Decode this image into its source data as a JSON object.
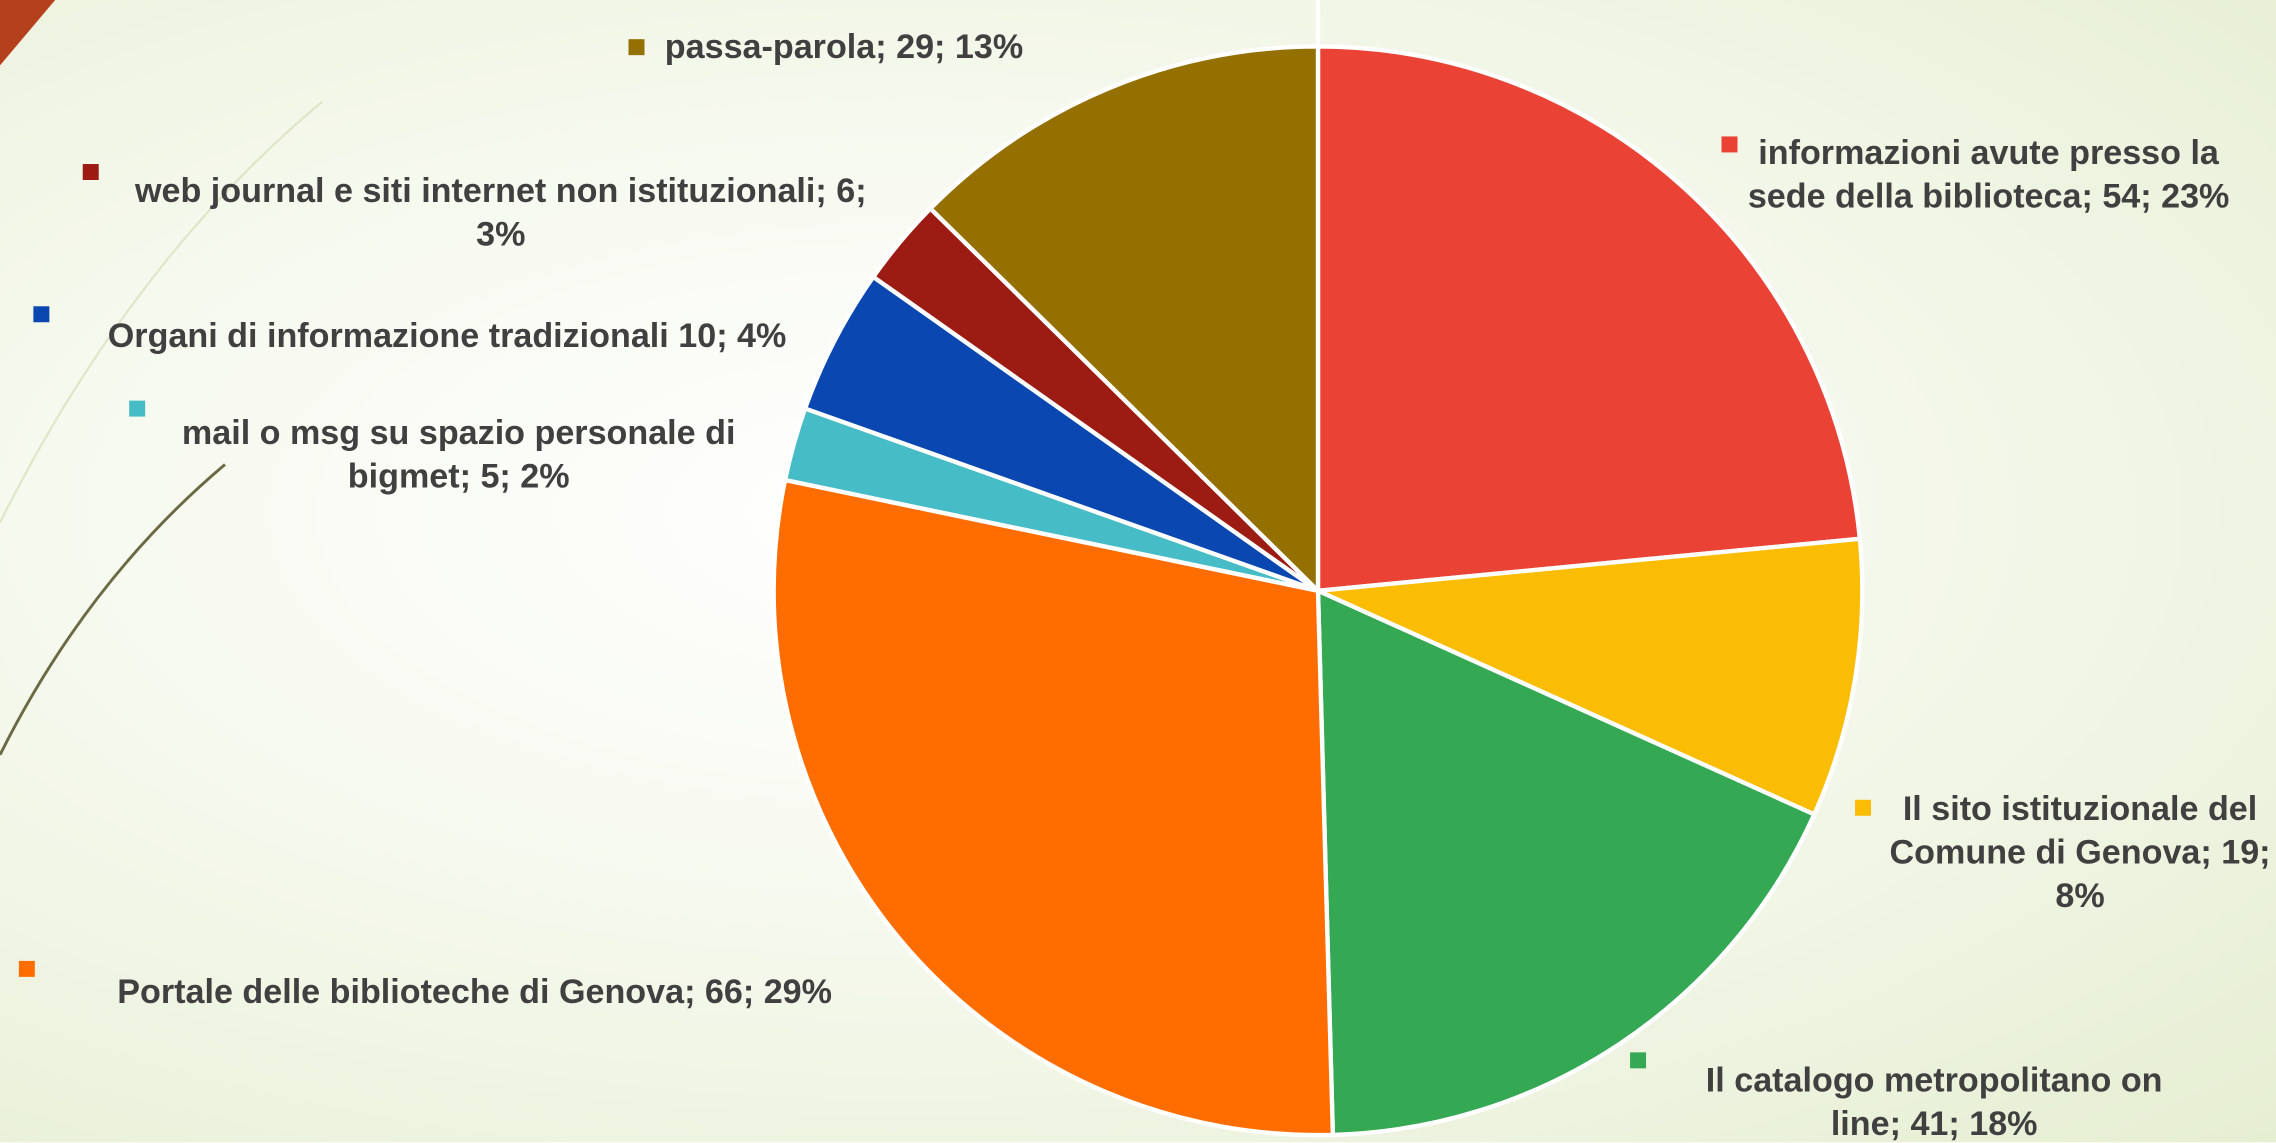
{
  "chart_data": {
    "type": "pie",
    "categories": [
      "informazioni avute presso la sede della biblioteca;",
      "Il sito istituzionale del Comune di Genova;",
      "Il catalogo metropolitano on line;",
      "Portale delle biblioteche di Genova;",
      "mail o msg su spazio personale di bigmet;",
      "Organi di informazione tradizionali",
      "web journal e siti internet non istituzionali;",
      "passa-parola;"
    ],
    "values": [
      54,
      19,
      41,
      66,
      5,
      10,
      6,
      29
    ],
    "value_labels": [
      "54; 23%",
      "19; 8%",
      "41; 18%",
      "66; 29%",
      "5; 2%",
      "10; 4%",
      "6; 3%",
      "29; 13%"
    ],
    "colors": [
      "#ea4335",
      "#fbbc04",
      "#34a853",
      "#ff6d01",
      "#46bdc6",
      "#0b47b0",
      "#9c1b13",
      "#947000"
    ]
  }
}
